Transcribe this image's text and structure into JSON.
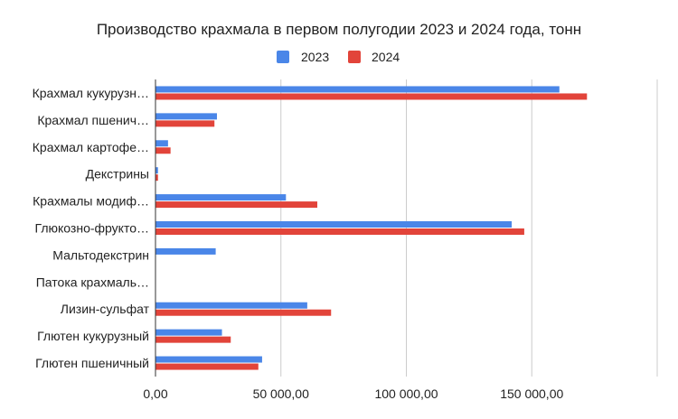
{
  "chart_data": {
    "type": "bar",
    "orientation": "horizontal",
    "title": "Производство крахмала в первом полугодии 2023 и 2024 года, тонн",
    "legend_position": "top",
    "grid": true,
    "xlim": [
      0,
      200000
    ],
    "x_ticks": [
      0,
      50000,
      100000,
      150000
    ],
    "x_tick_labels": [
      "0,00",
      "50 000,00",
      "100 000,00",
      "150 000,00"
    ],
    "categories": [
      "Крахмал кукурузн…",
      "Крахмал пшенич…",
      "Крахмал картофе…",
      "Декстрины",
      "Крахмалы модиф…",
      "Глюкозно-фрукто…",
      "Мальтодекстрин",
      "Патока крахмаль…",
      "Лизин-сульфат",
      "Глютен кукурузный",
      "Глютен пшеничный"
    ],
    "series": [
      {
        "name": "2023",
        "color": "#4a86e8",
        "values": [
          161000,
          24500,
          5000,
          1000,
          52000,
          142000,
          24000,
          0,
          60500,
          26500,
          42500
        ]
      },
      {
        "name": "2024",
        "color": "#e2443a",
        "values": [
          172000,
          23500,
          6000,
          1000,
          64500,
          147000,
          0,
          0,
          70000,
          30000,
          41000
        ]
      }
    ]
  }
}
